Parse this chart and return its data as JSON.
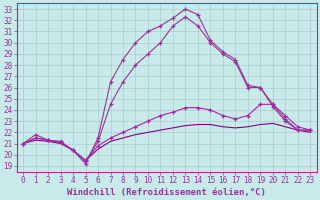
{
  "xlabel": "Windchill (Refroidissement éolien,°C)",
  "ylabel": "",
  "xlim": [
    -0.5,
    23.5
  ],
  "ylim": [
    18.5,
    33.5
  ],
  "yticks": [
    19,
    20,
    21,
    22,
    23,
    24,
    25,
    26,
    27,
    28,
    29,
    30,
    31,
    32,
    33
  ],
  "xticks": [
    0,
    1,
    2,
    3,
    4,
    5,
    6,
    7,
    8,
    9,
    10,
    11,
    12,
    13,
    14,
    15,
    16,
    17,
    18,
    19,
    20,
    21,
    22,
    23
  ],
  "background_color": "#c8eaea",
  "grid_color": "#b0d8d8",
  "lines": [
    {
      "x": [
        0,
        1,
        2,
        3,
        4,
        5,
        6,
        7,
        8,
        9,
        10,
        11,
        12,
        13,
        14,
        15,
        16,
        17,
        18,
        19,
        20,
        21,
        22,
        23
      ],
      "y": [
        21.0,
        21.8,
        21.3,
        21.1,
        20.4,
        19.2,
        21.5,
        26.5,
        28.5,
        30.0,
        31.0,
        31.5,
        32.2,
        33.0,
        32.5,
        30.2,
        29.2,
        28.5,
        26.2,
        26.0,
        24.5,
        23.2,
        22.2,
        22.2
      ],
      "color": "#993399",
      "marker": true
    },
    {
      "x": [
        0,
        1,
        2,
        3,
        4,
        5,
        6,
        7,
        8,
        9,
        10,
        11,
        12,
        13,
        14,
        15,
        16,
        17,
        18,
        19,
        20,
        21,
        22,
        23
      ],
      "y": [
        21.0,
        21.5,
        21.3,
        21.1,
        20.4,
        19.4,
        21.2,
        24.5,
        26.5,
        28.0,
        29.0,
        30.0,
        31.5,
        32.3,
        31.5,
        30.0,
        29.0,
        28.3,
        26.0,
        26.0,
        24.3,
        23.0,
        22.2,
        22.2
      ],
      "color": "#993399",
      "marker": true
    },
    {
      "x": [
        0,
        1,
        2,
        3,
        4,
        5,
        6,
        7,
        8,
        9,
        10,
        11,
        12,
        13,
        14,
        15,
        16,
        17,
        18,
        19,
        20,
        21,
        22,
        23
      ],
      "y": [
        21.0,
        21.5,
        21.3,
        21.2,
        20.4,
        19.5,
        20.8,
        21.5,
        22.0,
        22.5,
        23.0,
        23.5,
        23.8,
        24.2,
        24.2,
        24.0,
        23.5,
        23.2,
        23.5,
        24.5,
        24.5,
        23.5,
        22.5,
        22.2
      ],
      "color": "#aa22aa",
      "marker": true
    },
    {
      "x": [
        0,
        1,
        2,
        3,
        4,
        5,
        6,
        7,
        8,
        9,
        10,
        11,
        12,
        13,
        14,
        15,
        16,
        17,
        18,
        19,
        20,
        21,
        22,
        23
      ],
      "y": [
        21.0,
        21.3,
        21.2,
        21.0,
        20.4,
        19.5,
        20.5,
        21.2,
        21.5,
        21.8,
        22.0,
        22.2,
        22.4,
        22.6,
        22.7,
        22.7,
        22.5,
        22.4,
        22.5,
        22.7,
        22.8,
        22.5,
        22.2,
        22.0
      ],
      "color": "#880088",
      "marker": false
    }
  ],
  "title_fontsize": 7,
  "label_fontsize": 6.5,
  "tick_fontsize": 5.5
}
